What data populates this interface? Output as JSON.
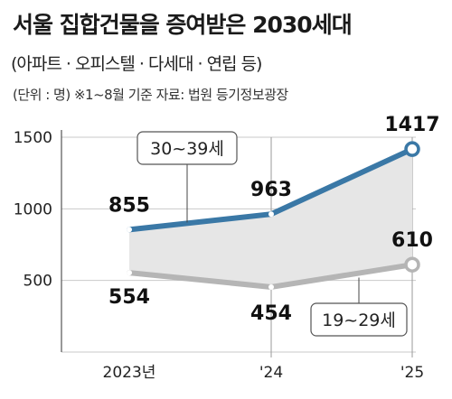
{
  "header": {
    "title": "서울 집합건물을 증여받은 2030세대",
    "subtitle": "(아파트 · 오피스텔 · 다세대 · 연립 등)",
    "note": "(단위 : 명)  ※1~8월 기준   자료: 법원 등기정보광장"
  },
  "colors": {
    "series_30s": "#3a78a6",
    "series_20s": "#b5b5b5",
    "area_fill": "#e6e6e6"
  },
  "chart_data": {
    "type": "line",
    "categories": [
      "2023년",
      "'24",
      "'25"
    ],
    "ylim": [
      0,
      1500
    ],
    "yticks": [
      0,
      500,
      1000,
      1500
    ],
    "ytick_labels": [
      "0",
      "500",
      "1000",
      "1500"
    ],
    "series": [
      {
        "name": "30~39세",
        "values": [
          855,
          963,
          1417
        ],
        "labels": [
          "855",
          "963",
          "1417"
        ]
      },
      {
        "name": "19~29세",
        "values": [
          554,
          454,
          610
        ],
        "labels": [
          "554",
          "454",
          "610"
        ]
      }
    ]
  }
}
